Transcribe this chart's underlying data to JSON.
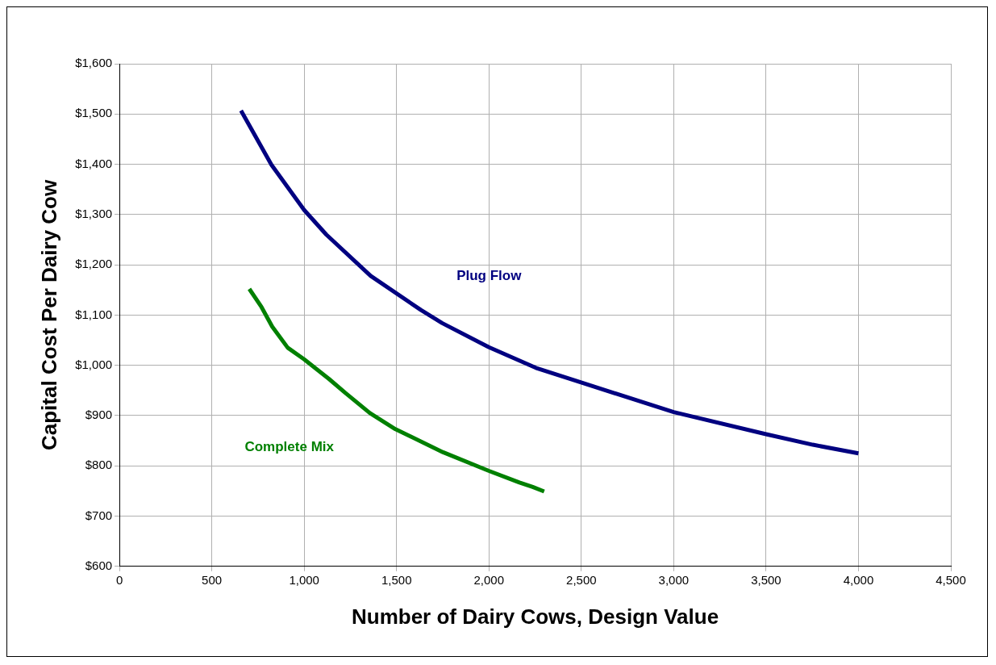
{
  "chart_data": {
    "type": "line",
    "xlabel": "Number of Dairy Cows, Design Value",
    "ylabel": "Capital Cost Per Dairy Cow",
    "xlim": [
      0,
      4500
    ],
    "xticks": [
      {
        "value": 0,
        "label": "0"
      },
      {
        "value": 500,
        "label": "500"
      },
      {
        "value": 1000,
        "label": "1,000"
      },
      {
        "value": 1500,
        "label": "1,500"
      },
      {
        "value": 2000,
        "label": "2,000"
      },
      {
        "value": 2500,
        "label": "2,500"
      },
      {
        "value": 3000,
        "label": "3,000"
      },
      {
        "value": 3500,
        "label": "3,500"
      },
      {
        "value": 4000,
        "label": "4,000"
      },
      {
        "value": 4500,
        "label": "4,500"
      }
    ],
    "ylim": [
      600,
      1600
    ],
    "yticks": [
      {
        "value": 600,
        "label": "$600"
      },
      {
        "value": 700,
        "label": "$700"
      },
      {
        "value": 800,
        "label": "$800"
      },
      {
        "value": 900,
        "label": "$900"
      },
      {
        "value": 1000,
        "label": "$1,000"
      },
      {
        "value": 1100,
        "label": "$1,100"
      },
      {
        "value": 1200,
        "label": "$1,200"
      },
      {
        "value": 1300,
        "label": "$1,300"
      },
      {
        "value": 1400,
        "label": "$1,400"
      },
      {
        "value": 1500,
        "label": "$1,500"
      },
      {
        "value": 1600,
        "label": "$1,600"
      }
    ],
    "grid": true,
    "marker": "none",
    "line_style": "solid",
    "legend": false,
    "series": [
      {
        "name": "Plug Flow",
        "color": "#000080",
        "x": [
          658,
          823,
          1000,
          1120,
          1360,
          1632,
          1747,
          2000,
          2254,
          2499,
          3000,
          3500,
          3753,
          4000
        ],
        "values": [
          1507,
          1399,
          1309,
          1260,
          1178,
          1110,
          1084,
          1036,
          995,
          966,
          907,
          863,
          842,
          825
        ]
      },
      {
        "name": "Complete Mix",
        "color": "#008000",
        "x": [
          703,
          769,
          827,
          911,
          1000,
          1134,
          1223,
          1356,
          1494,
          1752,
          2000,
          2165,
          2237,
          2299
        ],
        "values": [
          1152,
          1116,
          1077,
          1035,
          1012,
          973,
          945,
          905,
          873,
          827,
          790,
          767,
          758,
          749
        ]
      }
    ]
  }
}
